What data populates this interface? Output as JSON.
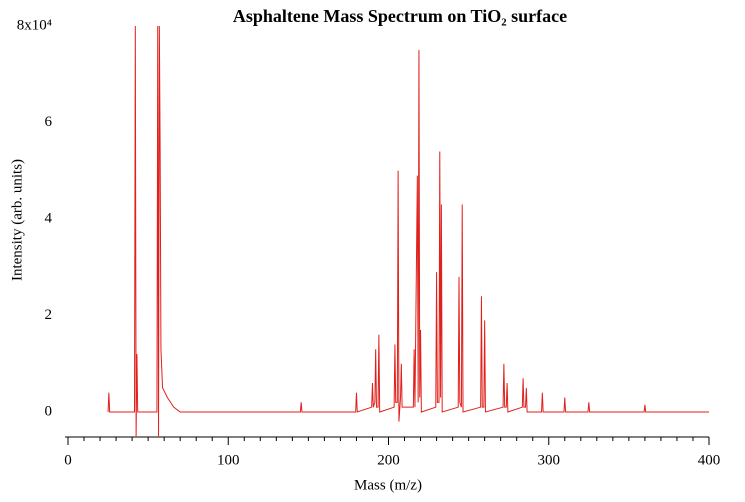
{
  "chart_data": {
    "type": "line",
    "title": "Asphaltene Mass Spectrum on TiO₂ surface",
    "x_label": "Mass (m/z)",
    "y_label": "Intensity (arb. units)",
    "color": "#e0201b",
    "xlim": [
      0,
      400
    ],
    "ylim": [
      -0.52,
      8
    ],
    "xticks": [
      0,
      100,
      200,
      300,
      400
    ],
    "xminorticks": [
      10,
      20,
      30,
      40,
      50,
      60,
      70,
      80,
      90,
      110,
      120,
      130,
      140,
      150,
      160,
      170,
      180,
      190,
      210,
      220,
      230,
      240,
      250,
      260,
      270,
      280,
      290,
      310,
      320,
      330,
      340,
      350,
      360,
      370,
      380,
      390
    ],
    "yticks": [
      0,
      2,
      4,
      6,
      {
        "value": 8,
        "label": "8x10⁴"
      }
    ],
    "x": [
      25,
      25.5,
      26,
      41.5,
      42,
      42.5,
      43,
      43.5,
      55.5,
      56,
      56.5,
      57,
      57.5,
      58,
      59,
      62,
      66,
      70,
      100,
      145,
      145.5,
      146,
      179.5,
      180,
      180.5,
      189.5,
      190,
      190.5,
      191.5,
      192,
      192.5,
      193.5,
      194,
      194.5,
      203.5,
      204,
      204.5,
      205.5,
      206,
      206.5,
      207.5,
      208,
      208.5,
      215.5,
      216,
      216.5,
      218,
      218.5,
      219,
      219.5,
      220,
      220.5,
      229.5,
      230,
      230.5,
      231.5,
      232,
      232.5,
      233,
      233.5,
      243.5,
      244,
      244.5,
      245.5,
      246,
      246.5,
      257.5,
      258,
      258.5,
      259.5,
      260,
      260.5,
      271.5,
      272,
      272.5,
      273.5,
      274,
      274.5,
      283.5,
      284,
      284.5,
      285.5,
      286,
      286.5,
      295.5,
      296,
      296.5,
      309.5,
      310,
      310.5,
      324.5,
      325,
      325.5,
      359.5,
      360,
      360.5,
      400
    ],
    "values": [
      0,
      0.4,
      0,
      0,
      8,
      -0.5,
      1.2,
      0,
      0,
      8,
      -0.5,
      8,
      5.4,
      1.3,
      0.5,
      0.3,
      0.1,
      0,
      0,
      0,
      0.2,
      0,
      0,
      0.4,
      0,
      0.1,
      0.6,
      0.1,
      0.2,
      1.3,
      0.1,
      0.1,
      1.6,
      0,
      0.1,
      1.4,
      0.2,
      0.2,
      5,
      -0.2,
      0.3,
      1,
      0.1,
      0.1,
      1.3,
      0.1,
      4.9,
      0.2,
      7.5,
      0.3,
      1.7,
      0,
      0.1,
      2.9,
      0.2,
      0.2,
      5.4,
      0.3,
      4.3,
      0,
      0.1,
      2.8,
      0.2,
      0.1,
      4.3,
      0,
      0.1,
      2.4,
      0.1,
      0.1,
      1.9,
      0,
      0.1,
      1,
      0.1,
      0.1,
      0.6,
      0,
      0.1,
      0.7,
      0.1,
      0.1,
      0.5,
      0,
      0,
      0.4,
      0,
      0,
      0.3,
      0,
      0,
      0.2,
      0,
      0,
      0.15,
      0,
      0
    ]
  }
}
